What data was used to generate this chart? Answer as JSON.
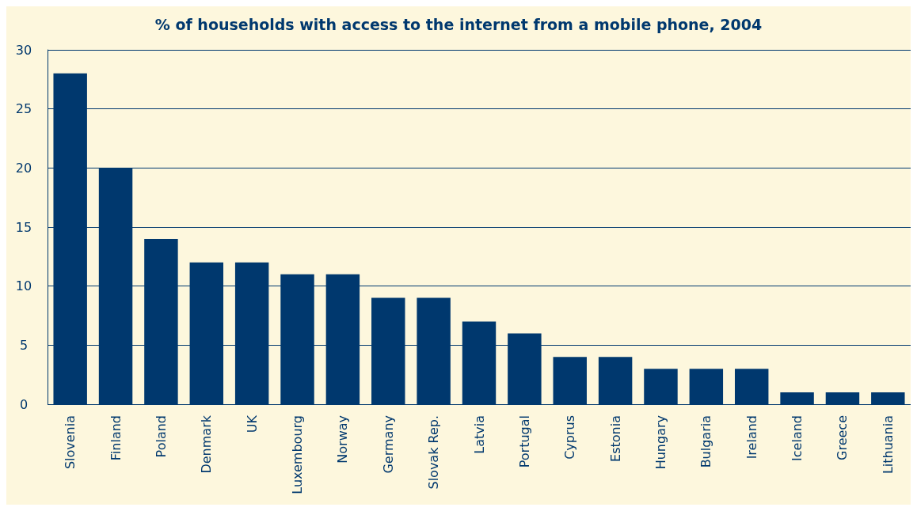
{
  "chart_data": {
    "type": "bar",
    "title": "% of households with access to the internet from a mobile phone, 2004",
    "categories": [
      "Slovenia",
      "Finland",
      "Poland",
      "Denmark",
      "UK",
      "Luxembourg",
      "Norway",
      "Germany",
      "Slovak Rep.",
      "Latvia",
      "Portugal",
      "Cyprus",
      "Estonia",
      "Hungary",
      "Bulgaria",
      "Ireland",
      "Iceland",
      "Greece",
      "Lithuania"
    ],
    "values": [
      28,
      20,
      14,
      12,
      12,
      11,
      11,
      9,
      9,
      7,
      6,
      4,
      4,
      3,
      3,
      3,
      1,
      1,
      1
    ],
    "color": "#00386e",
    "ylim": [
      0,
      30
    ],
    "yticks": [
      0,
      5,
      10,
      15,
      20,
      25,
      30
    ],
    "grid": "y"
  }
}
